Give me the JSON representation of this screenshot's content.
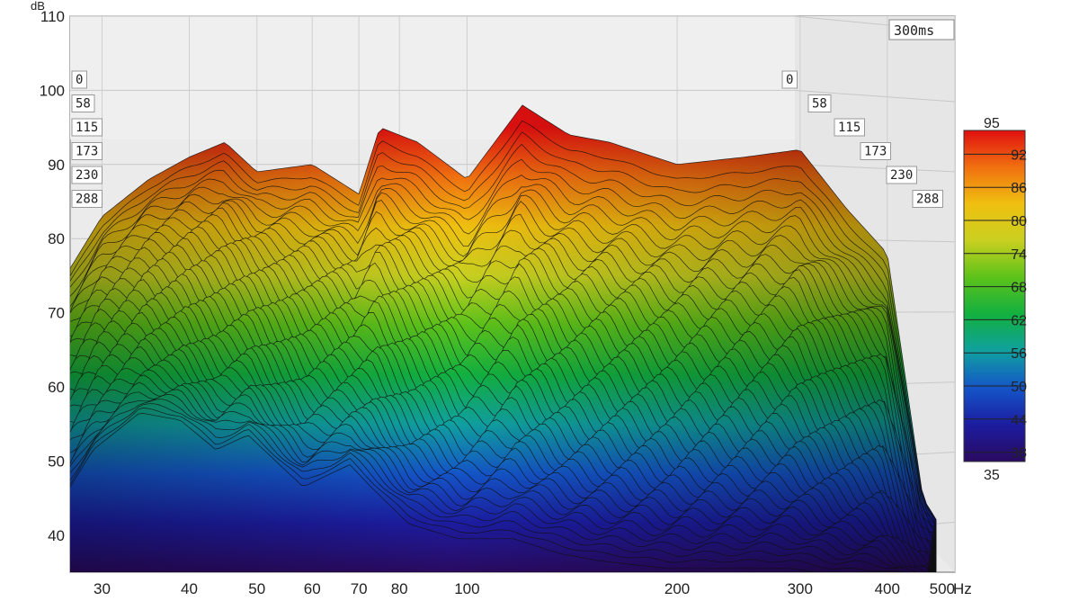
{
  "chart_data": {
    "type": "waterfall",
    "title": "",
    "window": "300ms",
    "x_unit": "Hz",
    "y_unit": "dB",
    "xlim": [
      27,
      500
    ],
    "x_scale": "log",
    "ylim": [
      35,
      110
    ],
    "x_ticks": [
      30,
      40,
      50,
      60,
      70,
      80,
      100,
      200,
      300,
      400,
      500
    ],
    "y_ticks": [
      40,
      50,
      60,
      70,
      80,
      90,
      100,
      110
    ],
    "time_ms": [
      0,
      58,
      115,
      173,
      230,
      288
    ],
    "colorbar": {
      "min": 35,
      "max": 95,
      "ticks": [
        38,
        44,
        50,
        56,
        62,
        68,
        74,
        80,
        86,
        92
      ],
      "colors": [
        "#2a0a60",
        "#1c1ca0",
        "#1455c8",
        "#10a0a0",
        "#12b040",
        "#5cc21a",
        "#c8d020",
        "#f0c010",
        "#f07010",
        "#e01010"
      ]
    },
    "series": [
      {
        "name": "0 ms",
        "x": [
          27,
          30,
          35,
          40,
          45,
          50,
          60,
          70,
          75,
          85,
          100,
          120,
          140,
          160,
          200,
          250,
          300,
          350,
          400,
          450,
          500
        ],
        "y": [
          76,
          83,
          88,
          91,
          93,
          89,
          90,
          86,
          95,
          93,
          88,
          98,
          94,
          93,
          90,
          91,
          92,
          84,
          78,
          45,
          38
        ]
      },
      {
        "name": "288 ms",
        "x": [
          27,
          30,
          35,
          40,
          45,
          50,
          60,
          70,
          75,
          85,
          100,
          120,
          140,
          160,
          200,
          250,
          300,
          350,
          400,
          450,
          500
        ],
        "y": [
          45,
          52,
          57,
          56,
          52,
          54,
          47,
          50,
          47,
          42,
          40,
          40,
          38,
          37,
          36,
          36,
          36,
          35,
          35,
          35,
          35
        ]
      }
    ]
  }
}
